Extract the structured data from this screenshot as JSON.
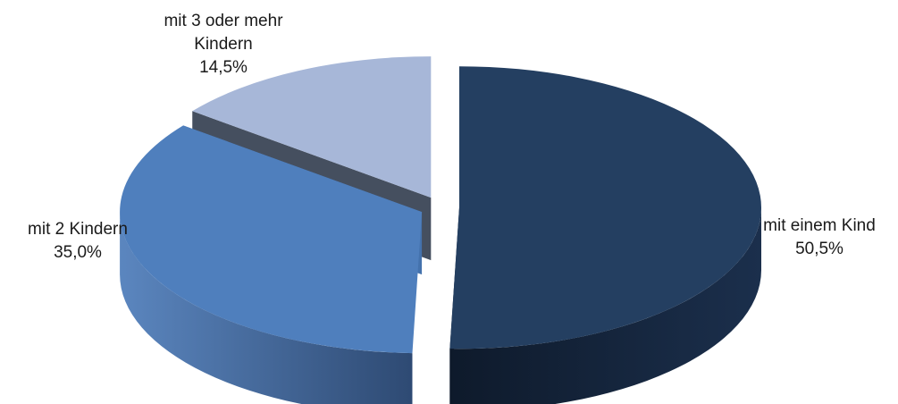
{
  "chart_data": {
    "type": "pie",
    "style": "3d-exploded",
    "title": "",
    "slices": [
      {
        "label_lines": [
          "mit einem Kind"
        ],
        "value_text": "50,5%",
        "value": 50.5,
        "color": "#243f61",
        "side_color": "#14233a"
      },
      {
        "label_lines": [
          "mit 2  Kindern"
        ],
        "value_text": "35,0%",
        "value": 35.0,
        "color": "#4f7fbd",
        "side_color": "#375a87"
      },
      {
        "label_lines": [
          "mit 3 oder mehr",
          "Kindern"
        ],
        "value_text": "14,5%",
        "value": 14.5,
        "color": "#a7b7d8",
        "side_color": "#454f5f"
      }
    ]
  }
}
